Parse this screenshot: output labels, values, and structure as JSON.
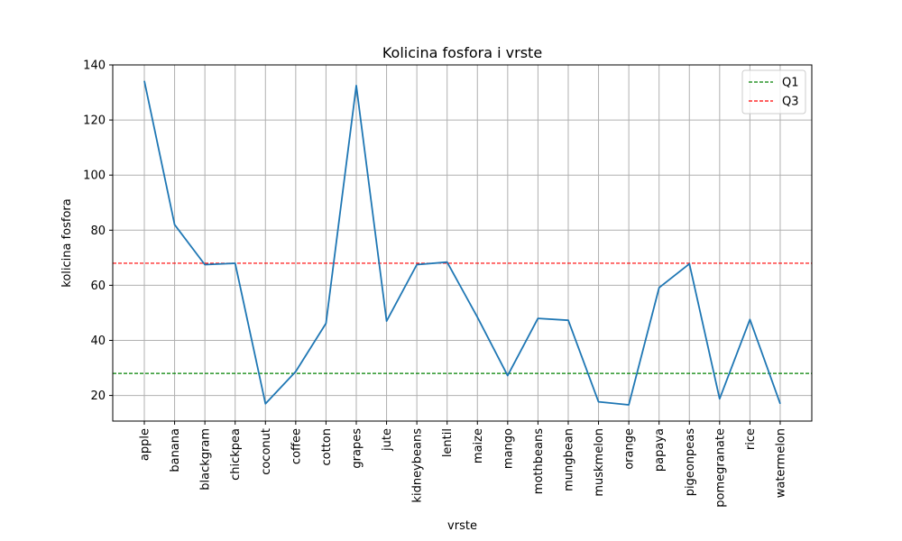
{
  "chart_data": {
    "type": "line",
    "title": "Kolicina fosfora i vrste",
    "xlabel": "vrste",
    "ylabel": "kolicina fosfora",
    "categories": [
      "apple",
      "banana",
      "blackgram",
      "chickpea",
      "coconut",
      "coffee",
      "cotton",
      "grapes",
      "jute",
      "kidneybeans",
      "lentil",
      "maize",
      "mango",
      "mothbeans",
      "mungbean",
      "muskmelon",
      "orange",
      "papaya",
      "pigeonpeas",
      "pomegranate",
      "rice",
      "watermelon"
    ],
    "series": [
      {
        "values": [
          134.2,
          82.0,
          67.5,
          68.0,
          17.0,
          28.7,
          46.2,
          132.5,
          47.0,
          67.5,
          68.4,
          48.4,
          27.2,
          48.0,
          47.3,
          17.7,
          16.6,
          59.1,
          67.8,
          18.8,
          47.6,
          17.0
        ],
        "color": "#1f77b4"
      }
    ],
    "reference_lines": [
      {
        "name": "Q1",
        "value": 28.0,
        "color": "#008000",
        "style": "dashed"
      },
      {
        "name": "Q3",
        "value": 68.0,
        "color": "#ff0000",
        "style": "dashed"
      }
    ],
    "ylim": [
      10.7,
      140
    ],
    "yticks": [
      20,
      40,
      60,
      80,
      100,
      120,
      140
    ],
    "grid": true,
    "legend_position": "top-right"
  }
}
